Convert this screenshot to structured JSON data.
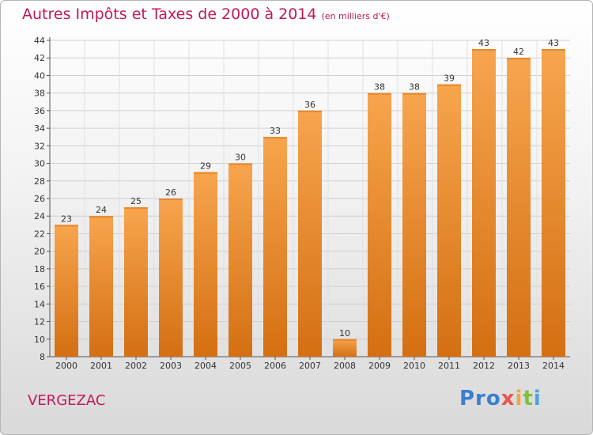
{
  "header": {
    "title": "Autres Impôts et Taxes de 2000 à 2014",
    "subtitle": "(en milliers d'€)"
  },
  "footer": {
    "commune": "VERGEZAC",
    "logo": [
      "Pro",
      "x",
      "i",
      "t",
      "i"
    ]
  },
  "colors": {
    "bar_light": "#f7a54e",
    "bar_dark": "#d46f12",
    "title": "#c2185b",
    "axis": "#555555"
  },
  "chart_data": {
    "type": "bar",
    "categories": [
      "2000",
      "2001",
      "2002",
      "2003",
      "2004",
      "2005",
      "2006",
      "2007",
      "2008",
      "2009",
      "2010",
      "2011",
      "2012",
      "2013",
      "2014"
    ],
    "values": [
      23,
      24,
      25,
      26,
      29,
      30,
      33,
      36,
      10,
      38,
      38,
      39,
      43,
      42,
      43
    ],
    "title": "Autres Impôts et Taxes de 2000 à 2014",
    "subtitle": "(en milliers d'€)",
    "ylim": [
      8,
      44
    ],
    "yticks": [
      8,
      10,
      12,
      14,
      16,
      18,
      20,
      22,
      24,
      26,
      28,
      30,
      32,
      34,
      36,
      38,
      40,
      42,
      44
    ],
    "grid": true
  }
}
